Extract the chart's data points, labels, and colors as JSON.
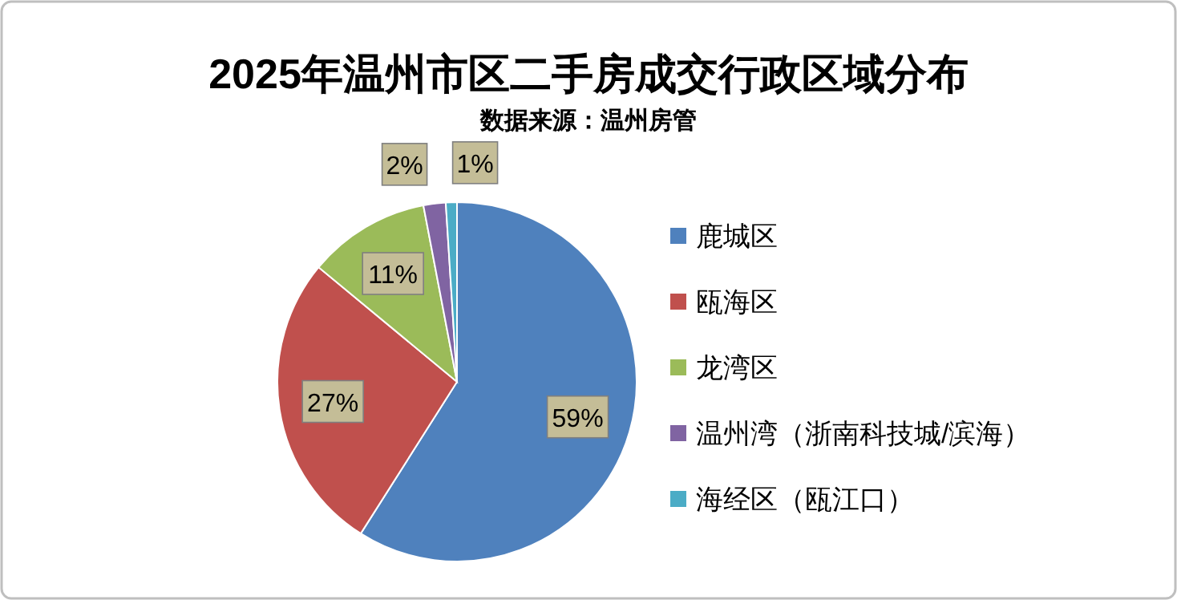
{
  "chart_data": {
    "type": "pie",
    "title": "2025年温州市区二手房成交行政区域分布",
    "subtitle": "数据来源：温州房管",
    "categories": [
      "鹿城区",
      "瓯海区",
      "龙湾区",
      "温州湾（浙南科技城/滨海）",
      "海经区（瓯江口）"
    ],
    "values": [
      59,
      27,
      11,
      2,
      1
    ],
    "colors": [
      "#4f81bd",
      "#c0504d",
      "#9bbb59",
      "#8064a2",
      "#4bacc6"
    ],
    "value_labels": [
      "59%",
      "27%",
      "11%",
      "2%",
      "1%"
    ],
    "legend": "right"
  }
}
